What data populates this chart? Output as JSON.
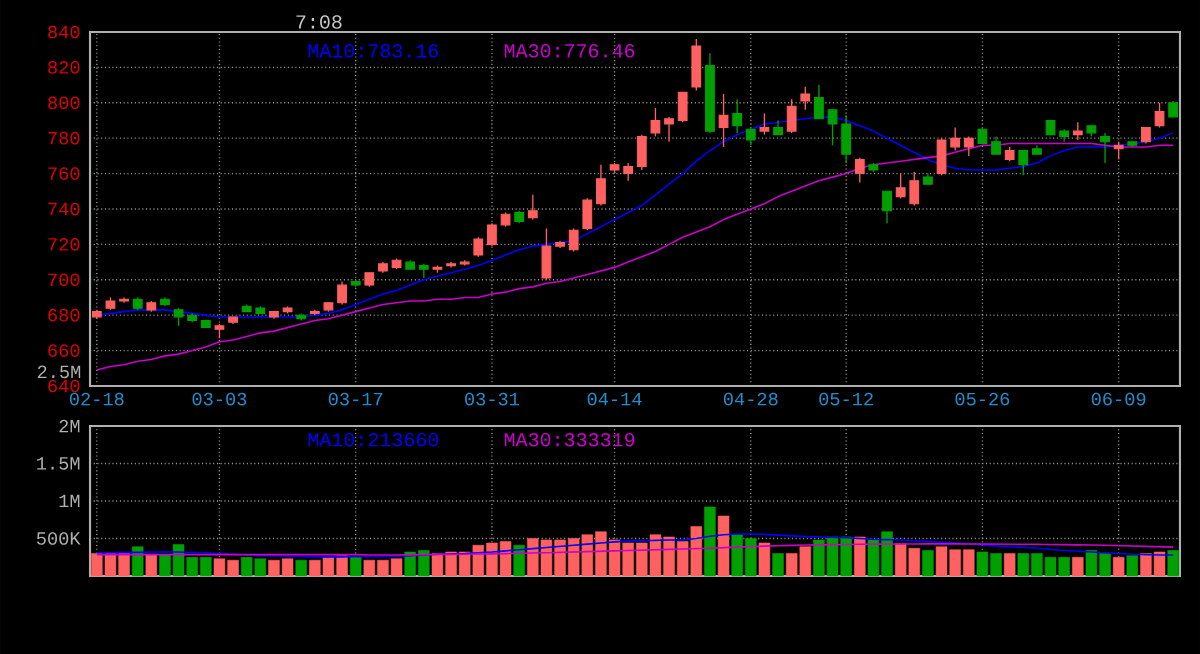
{
  "chart_data": [
    {
      "type": "candlestick",
      "title": "7:08",
      "legend": "top",
      "grid": true,
      "annotations": [
        "2.5M"
      ],
      "categories": [
        "02-18",
        null,
        null,
        null,
        null,
        null,
        null,
        null,
        null,
        "03-03",
        null,
        null,
        null,
        null,
        null,
        null,
        null,
        null,
        null,
        "03-17",
        null,
        null,
        null,
        null,
        null,
        null,
        null,
        null,
        null,
        "03-31",
        null,
        null,
        null,
        null,
        null,
        null,
        null,
        null,
        "04-14",
        null,
        null,
        null,
        null,
        null,
        null,
        null,
        null,
        null,
        "04-28",
        null,
        null,
        null,
        null,
        null,
        null,
        "05-12",
        null,
        null,
        null,
        null,
        null,
        null,
        null,
        null,
        null,
        "05-26",
        null,
        null,
        null,
        null,
        null,
        null,
        null,
        null,
        null,
        "06-09",
        null,
        null,
        null,
        null
      ],
      "ohlc": [
        [
          679,
          683,
          678,
          682
        ],
        [
          684,
          690,
          683,
          688
        ],
        [
          688,
          690,
          687,
          689
        ],
        [
          689,
          690,
          683,
          684
        ],
        [
          683,
          688,
          682,
          687
        ],
        [
          689,
          690,
          685,
          686
        ],
        [
          683,
          684,
          674,
          679
        ],
        [
          680,
          681,
          676,
          677
        ],
        [
          677,
          677,
          673,
          673
        ],
        [
          672,
          675,
          667,
          674
        ],
        [
          676,
          679,
          675,
          679
        ],
        [
          685,
          686,
          682,
          682
        ],
        [
          684,
          685,
          681,
          681
        ],
        [
          679,
          682,
          678,
          682
        ],
        [
          682,
          685,
          681,
          684
        ],
        [
          680,
          681,
          677,
          678
        ],
        [
          681,
          683,
          680,
          682
        ],
        [
          683,
          687,
          682,
          687
        ],
        [
          687,
          699,
          686,
          697
        ],
        [
          699,
          700,
          696,
          697
        ],
        [
          697,
          704,
          696,
          704
        ],
        [
          705,
          710,
          704,
          709
        ],
        [
          707,
          712,
          706,
          711
        ],
        [
          710,
          711,
          706,
          706
        ],
        [
          708,
          709,
          701,
          706
        ],
        [
          706,
          708,
          704,
          707
        ],
        [
          708,
          710,
          707,
          709
        ],
        [
          709,
          711,
          708,
          710
        ],
        [
          714,
          724,
          713,
          723
        ],
        [
          720,
          732,
          719,
          731
        ],
        [
          731,
          738,
          730,
          737
        ],
        [
          738,
          739,
          732,
          733
        ],
        [
          735,
          748,
          734,
          739
        ],
        [
          701,
          729,
          700,
          719
        ],
        [
          719,
          722,
          718,
          721
        ],
        [
          717,
          729,
          716,
          728
        ],
        [
          729,
          746,
          728,
          745
        ],
        [
          743,
          765,
          742,
          757
        ],
        [
          762,
          766,
          760,
          765
        ],
        [
          760,
          766,
          756,
          764
        ],
        [
          764,
          782,
          762,
          781
        ],
        [
          783,
          797,
          781,
          790
        ],
        [
          788,
          792,
          778,
          791
        ],
        [
          790,
          806,
          789,
          806
        ],
        [
          809,
          836,
          807,
          832
        ],
        [
          821,
          828,
          783,
          784
        ],
        [
          786,
          805,
          775,
          793
        ],
        [
          794,
          802,
          783,
          787
        ],
        [
          785,
          786,
          776,
          779
        ],
        [
          784,
          794,
          782,
          786
        ],
        [
          786,
          790,
          782,
          782
        ],
        [
          784,
          802,
          783,
          798
        ],
        [
          801,
          809,
          796,
          805
        ],
        [
          803,
          810,
          791,
          791
        ],
        [
          796,
          796,
          776,
          788
        ],
        [
          788,
          793,
          766,
          771
        ],
        [
          760,
          769,
          755,
          768
        ],
        [
          765,
          766,
          761,
          762
        ],
        [
          750,
          750,
          732,
          739
        ],
        [
          747,
          760,
          746,
          752
        ],
        [
          743,
          761,
          742,
          756
        ],
        [
          758,
          760,
          754,
          754
        ],
        [
          760,
          780,
          759,
          779
        ],
        [
          775,
          786,
          773,
          780
        ],
        [
          775,
          781,
          770,
          780
        ],
        [
          785,
          786,
          777,
          777
        ],
        [
          778,
          781,
          771,
          771
        ],
        [
          768,
          775,
          767,
          773
        ],
        [
          773,
          773,
          759,
          765
        ],
        [
          774,
          776,
          771,
          771
        ],
        [
          790,
          790,
          782,
          782
        ],
        [
          784,
          785,
          778,
          781
        ],
        [
          782,
          789,
          779,
          784
        ],
        [
          787,
          787,
          781,
          783
        ],
        [
          781,
          783,
          766,
          778
        ],
        [
          774,
          778,
          768,
          776
        ],
        [
          778,
          778,
          775,
          776
        ],
        [
          778,
          786,
          777,
          786
        ],
        [
          787,
          800,
          786,
          795
        ],
        [
          800,
          801,
          792,
          792
        ]
      ],
      "colors": [
        "#ff6060",
        "#ff6060",
        "#ff6060",
        "#00a000",
        "#ff6060",
        "#00a000",
        "#00a000",
        "#00a000",
        "#00a000",
        "#ff6060",
        "#ff6060",
        "#00a000",
        "#00a000",
        "#ff6060",
        "#ff6060",
        "#00a000",
        "#ff6060",
        "#ff6060",
        "#ff6060",
        "#00a000",
        "#ff6060",
        "#ff6060",
        "#ff6060",
        "#00a000",
        "#00a000",
        "#ff6060",
        "#ff6060",
        "#ff6060",
        "#ff6060",
        "#ff6060",
        "#ff6060",
        "#00a000",
        "#ff6060",
        "#ff6060",
        "#ff6060",
        "#ff6060",
        "#ff6060",
        "#ff6060",
        "#ff6060",
        "#ff6060",
        "#ff6060",
        "#ff6060",
        "#ff6060",
        "#ff6060",
        "#ff6060",
        "#00a000",
        "#ff6060",
        "#00a000",
        "#00a000",
        "#ff6060",
        "#00a000",
        "#ff6060",
        "#ff6060",
        "#00a000",
        "#00a000",
        "#00a000",
        "#ff6060",
        "#00a000",
        "#00a000",
        "#ff6060",
        "#ff6060",
        "#00a000",
        "#ff6060",
        "#ff6060",
        "#ff6060",
        "#00a000",
        "#00a000",
        "#ff6060",
        "#00a000",
        "#00a000",
        "#00a000",
        "#00a000",
        "#ff6060",
        "#00a000",
        "#00a000",
        "#ff6060",
        "#00a000",
        "#ff6060",
        "#ff6060",
        "#00a000"
      ],
      "series": [
        {
          "type": "line",
          "name": "MA10:783.16",
          "color": "#0000ff",
          "values": [
            680,
            681,
            682,
            683,
            683,
            683,
            682,
            681,
            680,
            679,
            679,
            679,
            679,
            679,
            679,
            679,
            680,
            681,
            683,
            686,
            689,
            692,
            694,
            697,
            700,
            702,
            704,
            706,
            708,
            711,
            714,
            717,
            719,
            720,
            721,
            722,
            726,
            730,
            734,
            738,
            742,
            748,
            754,
            760,
            767,
            773,
            778,
            782,
            785,
            788,
            789,
            790,
            791,
            792,
            792,
            790,
            787,
            784,
            780,
            776,
            772,
            768,
            765,
            763,
            762,
            762,
            762,
            763,
            764,
            766,
            770,
            773,
            775,
            775,
            775,
            776,
            777,
            778,
            780,
            783
          ]
        },
        {
          "type": "line",
          "name": "MA30:776.46",
          "color": "#cc00cc",
          "values": [
            649,
            651,
            652,
            654,
            655,
            657,
            658,
            660,
            662,
            665,
            666,
            668,
            670,
            671,
            673,
            675,
            677,
            678,
            680,
            682,
            684,
            686,
            687,
            688,
            688,
            689,
            689,
            690,
            690,
            692,
            693,
            695,
            696,
            698,
            699,
            701,
            703,
            705,
            707,
            710,
            713,
            716,
            720,
            724,
            727,
            730,
            734,
            737,
            740,
            743,
            747,
            750,
            753,
            756,
            758,
            760,
            763,
            765,
            766,
            767,
            768,
            769,
            770,
            772,
            774,
            776,
            776,
            777,
            777,
            777,
            777,
            777,
            777,
            777,
            776,
            775,
            775,
            775,
            776,
            776
          ]
        }
      ],
      "ylim": [
        640,
        840
      ],
      "yticks": [
        640,
        660,
        680,
        700,
        720,
        740,
        760,
        780,
        800,
        820,
        840
      ]
    },
    {
      "type": "bar",
      "legend": "top",
      "grid": true,
      "tick_labels": "y",
      "categories": [
        null,
        null,
        null,
        null,
        null,
        null,
        null,
        null,
        null,
        null,
        null,
        null,
        null,
        null,
        null,
        null,
        null,
        null,
        null,
        null,
        null,
        null,
        null,
        null,
        null,
        null,
        null,
        null,
        null,
        null,
        null,
        null,
        null,
        null,
        null,
        null,
        null,
        null,
        null,
        null,
        null,
        null,
        null,
        null,
        null,
        null,
        null,
        null,
        null,
        null,
        null,
        null,
        null,
        null,
        null,
        null,
        null,
        null,
        null,
        null,
        null,
        null,
        null,
        null,
        null,
        null,
        null,
        null,
        null,
        null,
        null,
        null,
        null,
        null,
        null,
        null,
        null,
        null,
        null,
        null
      ],
      "series": [
        {
          "type": "bar",
          "values": [
            300000,
            300000,
            300000,
            390000,
            280000,
            280000,
            420000,
            250000,
            250000,
            230000,
            210000,
            250000,
            230000,
            210000,
            230000,
            210000,
            210000,
            250000,
            270000,
            250000,
            210000,
            210000,
            230000,
            320000,
            340000,
            300000,
            320000,
            320000,
            410000,
            440000,
            460000,
            410000,
            500000,
            480000,
            480000,
            500000,
            550000,
            590000,
            480000,
            440000,
            440000,
            550000,
            520000,
            460000,
            660000,
            920000,
            800000,
            550000,
            500000,
            440000,
            300000,
            300000,
            390000,
            480000,
            520000,
            520000,
            520000,
            480000,
            590000,
            430000,
            370000,
            340000,
            390000,
            350000,
            350000,
            320000,
            300000,
            300000,
            300000,
            300000,
            250000,
            250000,
            250000,
            340000,
            300000,
            250000,
            270000,
            300000,
            320000,
            340000
          ],
          "colors": [
            "#ff6060",
            "#ff6060",
            "#ff6060",
            "#00a000",
            "#ff6060",
            "#00a000",
            "#00a000",
            "#00a000",
            "#00a000",
            "#ff6060",
            "#ff6060",
            "#00a000",
            "#00a000",
            "#ff6060",
            "#ff6060",
            "#00a000",
            "#ff6060",
            "#ff6060",
            "#ff6060",
            "#00a000",
            "#ff6060",
            "#ff6060",
            "#ff6060",
            "#00a000",
            "#00a000",
            "#ff6060",
            "#ff6060",
            "#ff6060",
            "#ff6060",
            "#ff6060",
            "#ff6060",
            "#00a000",
            "#ff6060",
            "#ff6060",
            "#ff6060",
            "#ff6060",
            "#ff6060",
            "#ff6060",
            "#ff6060",
            "#ff6060",
            "#ff6060",
            "#ff6060",
            "#ff6060",
            "#ff6060",
            "#ff6060",
            "#00a000",
            "#ff6060",
            "#00a000",
            "#00a000",
            "#ff6060",
            "#00a000",
            "#ff6060",
            "#ff6060",
            "#00a000",
            "#00a000",
            "#00a000",
            "#ff6060",
            "#00a000",
            "#00a000",
            "#ff6060",
            "#ff6060",
            "#00a000",
            "#ff6060",
            "#ff6060",
            "#ff6060",
            "#00a000",
            "#00a000",
            "#ff6060",
            "#00a000",
            "#00a000",
            "#00a000",
            "#00a000",
            "#ff6060",
            "#00a000",
            "#00a000",
            "#ff6060",
            "#00a000",
            "#ff6060",
            "#ff6060",
            "#00a000"
          ]
        },
        {
          "type": "line",
          "name": "MA10:213660",
          "color": "#0000ff",
          "values": [
            310000,
            310000,
            315000,
            315000,
            320000,
            320000,
            320000,
            315000,
            310000,
            300000,
            290000,
            280000,
            270000,
            270000,
            265000,
            260000,
            255000,
            255000,
            255000,
            260000,
            260000,
            260000,
            265000,
            270000,
            280000,
            290000,
            295000,
            300000,
            310000,
            320000,
            335000,
            350000,
            365000,
            380000,
            395000,
            410000,
            425000,
            440000,
            455000,
            465000,
            470000,
            475000,
            480000,
            480000,
            500000,
            530000,
            550000,
            560000,
            560000,
            555000,
            545000,
            535000,
            525000,
            520000,
            515000,
            510000,
            500000,
            490000,
            485000,
            480000,
            470000,
            460000,
            450000,
            440000,
            430000,
            415000,
            400000,
            390000,
            380000,
            370000,
            355000,
            340000,
            330000,
            320000,
            310000,
            300000,
            290000,
            285000,
            280000,
            280000
          ]
        },
        {
          "type": "line",
          "name": "MA30:333319",
          "color": "#cc00cc",
          "values": [
            285000,
            285000,
            285000,
            285000,
            285000,
            285000,
            285000,
            285000,
            285000,
            285000,
            285000,
            285000,
            285000,
            285000,
            285000,
            285000,
            285000,
            285000,
            285000,
            285000,
            280000,
            280000,
            280000,
            282000,
            284000,
            286000,
            288000,
            290000,
            292000,
            295000,
            298000,
            302000,
            306000,
            310000,
            315000,
            320000,
            325000,
            330000,
            335000,
            340000,
            345000,
            350000,
            355000,
            360000,
            365000,
            370000,
            378000,
            385000,
            392000,
            398000,
            403000,
            408000,
            412000,
            415000,
            418000,
            420000,
            422000,
            424000,
            425000,
            426000,
            427000,
            428000,
            428000,
            428000,
            427000,
            426000,
            425000,
            424000,
            423000,
            422000,
            420000,
            418000,
            415000,
            412000,
            410000,
            405000,
            400000,
            395000,
            390000,
            385000
          ]
        }
      ],
      "ylim": [
        0,
        2000000
      ],
      "yticks": [
        {
          "value": 500000,
          "label": "500K"
        },
        {
          "value": 1000000,
          "label": "1M"
        },
        {
          "value": 1500000,
          "label": "1.5M"
        },
        {
          "value": 2000000,
          "label": "2M"
        }
      ]
    }
  ]
}
